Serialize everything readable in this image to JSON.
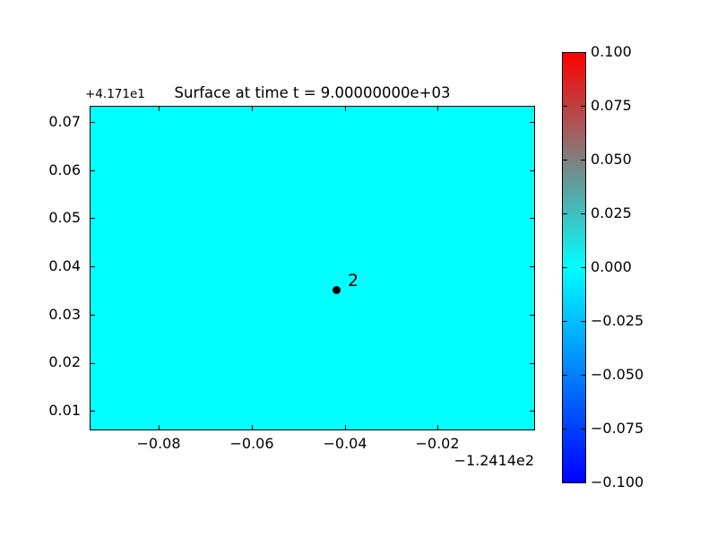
{
  "title": "Surface at time t = 9.00000000e+03",
  "axes": {
    "y_offset_label": "+4.171e1",
    "x_offset_label": "−1.2414e2",
    "x_tick_labels": [
      "−0.08",
      "−0.06",
      "−0.04",
      "−0.02"
    ],
    "y_tick_labels": [
      "0.07",
      "0.06",
      "0.05",
      "0.04",
      "0.03",
      "0.02",
      "0.01"
    ]
  },
  "marker": {
    "label": "2"
  },
  "colorbar": {
    "tick_labels": [
      "0.100",
      "0.075",
      "0.050",
      "0.025",
      "0.000",
      "−0.025",
      "−0.050",
      "−0.075",
      "−0.100"
    ],
    "top_color": "#ff0000",
    "mid_color": "#00ffff",
    "bottom_color": "#0000ff"
  },
  "colors": {
    "figure_background": "#ffffff",
    "surface_fill": "#00ffff",
    "marker": "#000000"
  },
  "chart_data": {
    "type": "heatmap",
    "title": "Surface at time t = 9.00000000e+03",
    "xlabel": "",
    "ylabel": "",
    "grid": false,
    "x_axis": {
      "tick_values": [
        -0.08,
        -0.06,
        -0.04,
        -0.02
      ],
      "offset_text": "−1.2414e2",
      "xlim": [
        -0.095,
        0.001
      ]
    },
    "y_axis": {
      "tick_values": [
        0.07,
        0.06,
        0.05,
        0.04,
        0.03,
        0.02,
        0.01
      ],
      "offset_text": "+4.171e1",
      "ylim": [
        0.006,
        0.0734
      ]
    },
    "field": {
      "description": "uniform scalar surface value over entire plot area",
      "uniform_value": 0.0,
      "rendered_color": "#00ffff"
    },
    "colorbar": {
      "vmin": -0.1,
      "vmax": 0.1,
      "tick_values": [
        0.1,
        0.075,
        0.05,
        0.025,
        0.0,
        -0.025,
        -0.05,
        -0.075,
        -0.1
      ],
      "gradient_stops": [
        {
          "value": -0.1,
          "color": "#0000ff"
        },
        {
          "value": 0.0,
          "color": "#00ffff"
        },
        {
          "value": 0.1,
          "color": "#ff0000"
        }
      ],
      "position": "right"
    },
    "annotations": [
      {
        "label": "2",
        "x": -0.042,
        "y": 0.035,
        "marker": "point",
        "color": "#000000"
      }
    ]
  }
}
